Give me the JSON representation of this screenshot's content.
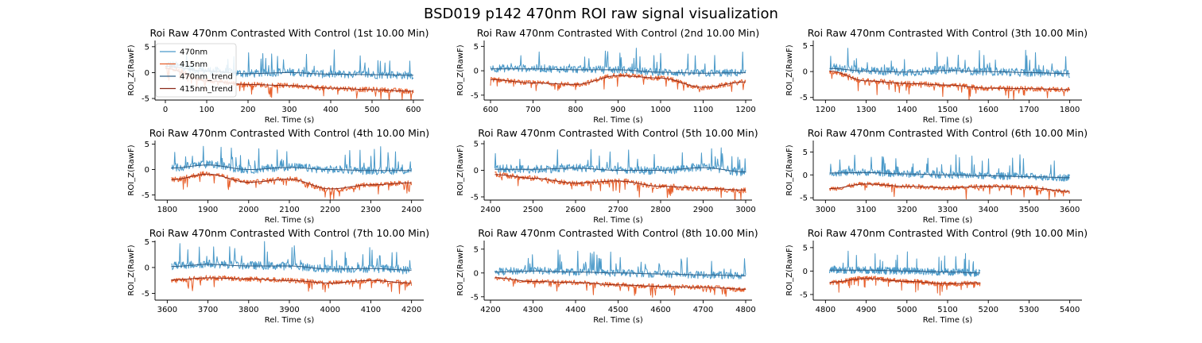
{
  "figure": {
    "title": "BSD019 p142 470nm ROI  raw signal visualization"
  },
  "colors": {
    "s470": "#4b9ac9",
    "s415": "#e8602c",
    "t470": "#2f5f86",
    "t415": "#8b2a1a"
  },
  "chart_data": {
    "type": "line",
    "xlabel": "Rel. Time (s)",
    "ylabel": "ROI_Z(RawF)",
    "legend": {
      "placement": "top-left",
      "entries": [
        "470nm",
        "415nm",
        "470nm_trend",
        "415nm_trend"
      ]
    },
    "grid": false,
    "panels": [
      {
        "title": "Roi Raw 470nm Contrasted With Control (1st 10.00 Min)",
        "xlim": [
          -25,
          625
        ],
        "ylim": [
          -5.3,
          6.2
        ],
        "xticks": [
          0,
          100,
          200,
          300,
          400,
          500,
          600
        ],
        "yticks": [
          -5,
          0,
          5
        ],
        "data_range": [
          0,
          600
        ],
        "series": [
          {
            "name": "470nm",
            "x": [
              0,
              100,
              200,
              300,
              400,
              500,
              600
            ],
            "values": [
              1.5,
              0.4,
              -0.2,
              0.1,
              -0.3,
              -0.4,
              -0.5
            ]
          },
          {
            "name": "415nm",
            "x": [
              0,
              100,
              200,
              300,
              400,
              500,
              600
            ],
            "values": [
              1.0,
              -1.5,
              -2.3,
              -2.5,
              -3.0,
              -3.3,
              -3.6
            ]
          },
          {
            "name": "470nm_trend",
            "x": [
              0,
              100,
              200,
              300,
              400,
              500,
              600
            ],
            "values": [
              1.2,
              0.3,
              -0.2,
              0.0,
              -0.3,
              -0.4,
              -0.5
            ]
          },
          {
            "name": "415nm_trend",
            "x": [
              0,
              100,
              200,
              300,
              400,
              500,
              600
            ],
            "values": [
              0.8,
              -1.6,
              -2.3,
              -2.5,
              -3.0,
              -3.3,
              -3.6
            ]
          }
        ]
      },
      {
        "title": "Roi Raw 470nm Contrasted With Control (2nd 10.00 Min)",
        "xlim": [
          585,
          1215
        ],
        "ylim": [
          -6.0,
          6.2
        ],
        "xticks": [
          600,
          700,
          800,
          900,
          1000,
          1100,
          1200
        ],
        "yticks": [
          -5,
          0,
          5
        ],
        "data_range": [
          600,
          1200
        ],
        "series": [
          {
            "name": "470nm",
            "x": [
              600,
              700,
              800,
              900,
              1000,
              1100,
              1200
            ],
            "values": [
              0.5,
              0.5,
              0.3,
              0.2,
              -0.3,
              -0.5,
              -0.4
            ]
          },
          {
            "name": "415nm",
            "x": [
              600,
              700,
              800,
              900,
              1000,
              1100,
              1200
            ],
            "values": [
              -1.8,
              -2.5,
              -2.8,
              -0.9,
              -1.5,
              -3.5,
              -2.3
            ]
          },
          {
            "name": "470nm_trend",
            "x": [
              600,
              700,
              800,
              900,
              1000,
              1100,
              1200
            ],
            "values": [
              0.4,
              0.4,
              0.2,
              0.2,
              -0.3,
              -0.5,
              -0.4
            ]
          },
          {
            "name": "415nm_trend",
            "x": [
              600,
              700,
              800,
              900,
              1000,
              1100,
              1200
            ],
            "values": [
              -1.8,
              -2.5,
              -2.8,
              -1.0,
              -1.5,
              -3.4,
              -2.3
            ]
          }
        ]
      },
      {
        "title": "Roi Raw 470nm Contrasted With Control (3th 10.00 Min)",
        "xlim": [
          1170,
          1830
        ],
        "ylim": [
          -5.5,
          6.0
        ],
        "xticks": [
          1200,
          1300,
          1400,
          1500,
          1600,
          1700,
          1800
        ],
        "yticks": [
          -5,
          0,
          5
        ],
        "data_range": [
          1210,
          1800
        ],
        "series": [
          {
            "name": "470nm",
            "x": [
              1210,
              1300,
              1400,
              1500,
              1600,
              1700,
              1800
            ],
            "values": [
              0.8,
              0.2,
              -0.1,
              0.3,
              0.0,
              -0.2,
              -0.4
            ]
          },
          {
            "name": "415nm",
            "x": [
              1210,
              1300,
              1400,
              1500,
              1600,
              1700,
              1800
            ],
            "values": [
              0.0,
              -1.8,
              -2.3,
              -2.6,
              -3.2,
              -3.3,
              -3.5
            ]
          },
          {
            "name": "470nm_trend",
            "x": [
              1210,
              1300,
              1400,
              1500,
              1600,
              1700,
              1800
            ],
            "values": [
              0.6,
              0.1,
              -0.1,
              0.2,
              0.0,
              -0.2,
              -0.4
            ]
          },
          {
            "name": "415nm_trend",
            "x": [
              1210,
              1300,
              1400,
              1500,
              1600,
              1700,
              1800
            ],
            "values": [
              0.1,
              -1.8,
              -2.3,
              -2.6,
              -3.2,
              -3.3,
              -3.5
            ]
          }
        ]
      },
      {
        "title": "Roi Raw 470nm Contrasted With Control (4th 10.00 Min)",
        "xlim": [
          1770,
          2430
        ],
        "ylim": [
          -6.0,
          5.7
        ],
        "xticks": [
          1800,
          1900,
          2000,
          2100,
          2200,
          2300,
          2400
        ],
        "yticks": [
          -5,
          0,
          5
        ],
        "data_range": [
          1810,
          2400
        ],
        "series": [
          {
            "name": "470nm",
            "x": [
              1810,
              1900,
              2000,
              2100,
              2200,
              2300,
              2400
            ],
            "values": [
              0.4,
              1.0,
              0.0,
              0.5,
              0.0,
              -0.2,
              -0.2
            ]
          },
          {
            "name": "415nm",
            "x": [
              1810,
              1900,
              2000,
              2100,
              2200,
              2300,
              2400
            ],
            "values": [
              -2.0,
              -0.8,
              -2.5,
              -1.8,
              -4.0,
              -3.0,
              -2.6
            ]
          },
          {
            "name": "470nm_trend",
            "x": [
              1810,
              1900,
              2000,
              2100,
              2200,
              2300,
              2400
            ],
            "values": [
              0.3,
              0.9,
              0.0,
              0.4,
              0.0,
              -0.2,
              -0.2
            ]
          },
          {
            "name": "415nm_trend",
            "x": [
              1810,
              1900,
              2000,
              2100,
              2200,
              2300,
              2400
            ],
            "values": [
              -2.0,
              -0.9,
              -2.5,
              -1.9,
              -3.8,
              -3.0,
              -2.6
            ]
          }
        ]
      },
      {
        "title": "Roi Raw 470nm Contrasted With Control (5th 10.00 Min)",
        "xlim": [
          2385,
          3015
        ],
        "ylim": [
          -5.6,
          5.6
        ],
        "xticks": [
          2400,
          2500,
          2600,
          2700,
          2800,
          2900,
          3000
        ],
        "yticks": [
          -5,
          0,
          5
        ],
        "data_range": [
          2410,
          3000
        ],
        "series": [
          {
            "name": "470nm",
            "x": [
              2410,
              2500,
              2600,
              2700,
              2800,
              2900,
              3000
            ],
            "values": [
              0.3,
              0.2,
              0.5,
              0.0,
              0.0,
              0.6,
              -0.3
            ]
          },
          {
            "name": "415nm",
            "x": [
              2410,
              2500,
              2600,
              2700,
              2800,
              2900,
              3000
            ],
            "values": [
              -0.8,
              -1.5,
              -2.5,
              -2.0,
              -3.0,
              -3.5,
              -3.8
            ]
          },
          {
            "name": "470nm_trend",
            "x": [
              2410,
              2500,
              2600,
              2700,
              2800,
              2900,
              3000
            ],
            "values": [
              0.2,
              0.2,
              0.4,
              0.0,
              0.0,
              0.5,
              -0.3
            ]
          },
          {
            "name": "415nm_trend",
            "x": [
              2410,
              2500,
              2600,
              2700,
              2800,
              2900,
              3000
            ],
            "values": [
              -0.8,
              -1.5,
              -2.4,
              -2.0,
              -3.0,
              -3.4,
              -3.7
            ]
          }
        ]
      },
      {
        "title": "Roi Raw 470nm Contrasted With Control (6th 10.00 Min)",
        "xlim": [
          2970,
          3630
        ],
        "ylim": [
          -5.5,
          7.5
        ],
        "xticks": [
          3000,
          3100,
          3200,
          3300,
          3400,
          3500,
          3600
        ],
        "yticks": [
          -5,
          0,
          5
        ],
        "data_range": [
          3010,
          3600
        ],
        "series": [
          {
            "name": "470nm",
            "x": [
              3010,
              3100,
              3200,
              3300,
              3400,
              3500,
              3600
            ],
            "values": [
              0.5,
              0.6,
              0.2,
              0.0,
              -0.2,
              -0.4,
              -0.6
            ]
          },
          {
            "name": "415nm",
            "x": [
              3010,
              3100,
              3200,
              3300,
              3400,
              3500,
              3600
            ],
            "values": [
              -3.0,
              -2.0,
              -2.5,
              -2.8,
              -2.5,
              -2.8,
              -3.7
            ]
          },
          {
            "name": "470nm_trend",
            "x": [
              3010,
              3100,
              3200,
              3300,
              3400,
              3500,
              3600
            ],
            "values": [
              0.4,
              0.5,
              0.2,
              0.0,
              -0.2,
              -0.4,
              -0.6
            ]
          },
          {
            "name": "415nm_trend",
            "x": [
              3010,
              3100,
              3200,
              3300,
              3400,
              3500,
              3600
            ],
            "values": [
              -3.0,
              -2.0,
              -2.5,
              -2.8,
              -2.5,
              -2.8,
              -3.6
            ]
          }
        ]
      },
      {
        "title": "Roi Raw 470nm Contrasted With Control (7th 10.00 Min)",
        "xlim": [
          3570,
          4230
        ],
        "ylim": [
          -6.3,
          5.2
        ],
        "xticks": [
          3600,
          3700,
          3800,
          3900,
          4000,
          4100,
          4200
        ],
        "yticks": [
          -5,
          0,
          5
        ],
        "data_range": [
          3610,
          4200
        ],
        "series": [
          {
            "name": "470nm",
            "x": [
              3610,
              3700,
              3800,
              3900,
              4000,
              4100,
              4200
            ],
            "values": [
              0.3,
              0.7,
              0.4,
              0.3,
              -0.3,
              -0.2,
              -0.5
            ]
          },
          {
            "name": "415nm",
            "x": [
              3610,
              3700,
              3800,
              3900,
              4000,
              4100,
              4200
            ],
            "values": [
              -2.5,
              -2.0,
              -2.2,
              -2.5,
              -3.0,
              -2.5,
              -3.0
            ]
          },
          {
            "name": "470nm_trend",
            "x": [
              3610,
              3700,
              3800,
              3900,
              4000,
              4100,
              4200
            ],
            "values": [
              0.2,
              0.6,
              0.3,
              0.3,
              -0.3,
              -0.2,
              -0.5
            ]
          },
          {
            "name": "415nm_trend",
            "x": [
              3610,
              3700,
              3800,
              3900,
              4000,
              4100,
              4200
            ],
            "values": [
              -2.4,
              -2.0,
              -2.2,
              -2.5,
              -3.0,
              -2.5,
              -3.0
            ]
          }
        ]
      },
      {
        "title": "Roi Raw 470nm Contrasted With Control (8th 10.00 Min)",
        "xlim": [
          4185,
          4815
        ],
        "ylim": [
          -5.7,
          6.8
        ],
        "xticks": [
          4200,
          4300,
          4400,
          4500,
          4600,
          4700,
          4800
        ],
        "yticks": [
          -5,
          0,
          5
        ],
        "data_range": [
          4210,
          4800
        ],
        "series": [
          {
            "name": "470nm",
            "x": [
              4210,
              4300,
              4400,
              4500,
              4600,
              4700,
              4800
            ],
            "values": [
              0.3,
              0.5,
              0.2,
              0.0,
              -0.2,
              -0.4,
              -0.6
            ]
          },
          {
            "name": "415nm",
            "x": [
              4210,
              4300,
              4400,
              4500,
              4600,
              4700,
              4800
            ],
            "values": [
              -1.0,
              -1.8,
              -2.0,
              -2.5,
              -2.8,
              -3.0,
              -3.5
            ]
          },
          {
            "name": "470nm_trend",
            "x": [
              4210,
              4300,
              4400,
              4500,
              4600,
              4700,
              4800
            ],
            "values": [
              0.2,
              0.4,
              0.2,
              0.0,
              -0.2,
              -0.4,
              -0.6
            ]
          },
          {
            "name": "415nm_trend",
            "x": [
              4210,
              4300,
              4400,
              4500,
              4600,
              4700,
              4800
            ],
            "values": [
              -1.0,
              -1.8,
              -2.0,
              -2.5,
              -2.8,
              -3.0,
              -3.4
            ]
          }
        ]
      },
      {
        "title": "Roi Raw 470nm Contrasted With Control (9th 10.00 Min)",
        "xlim": [
          4770,
          5430
        ],
        "ylim": [
          -6.2,
          6.5
        ],
        "xticks": [
          4800,
          4900,
          5000,
          5100,
          5200,
          5300,
          5400
        ],
        "yticks": [
          -5,
          0,
          5
        ],
        "data_range": [
          4810,
          5180
        ],
        "series": [
          {
            "name": "470nm",
            "x": [
              4810,
              4900,
              5000,
              5100,
              5180
            ],
            "values": [
              0.3,
              0.2,
              0.0,
              -0.2,
              -0.4
            ]
          },
          {
            "name": "415nm",
            "x": [
              4810,
              4900,
              5000,
              5100,
              5180
            ],
            "values": [
              -2.5,
              -1.5,
              -2.2,
              -2.8,
              -2.5
            ]
          },
          {
            "name": "470nm_trend",
            "x": [
              4810,
              4900,
              5000,
              5100,
              5180
            ],
            "values": [
              0.2,
              0.2,
              0.0,
              -0.2,
              -0.4
            ]
          },
          {
            "name": "415nm_trend",
            "x": [
              4810,
              4900,
              5000,
              5100,
              5180
            ],
            "values": [
              -2.4,
              -1.6,
              -2.2,
              -2.7,
              -2.5
            ]
          }
        ]
      }
    ]
  }
}
